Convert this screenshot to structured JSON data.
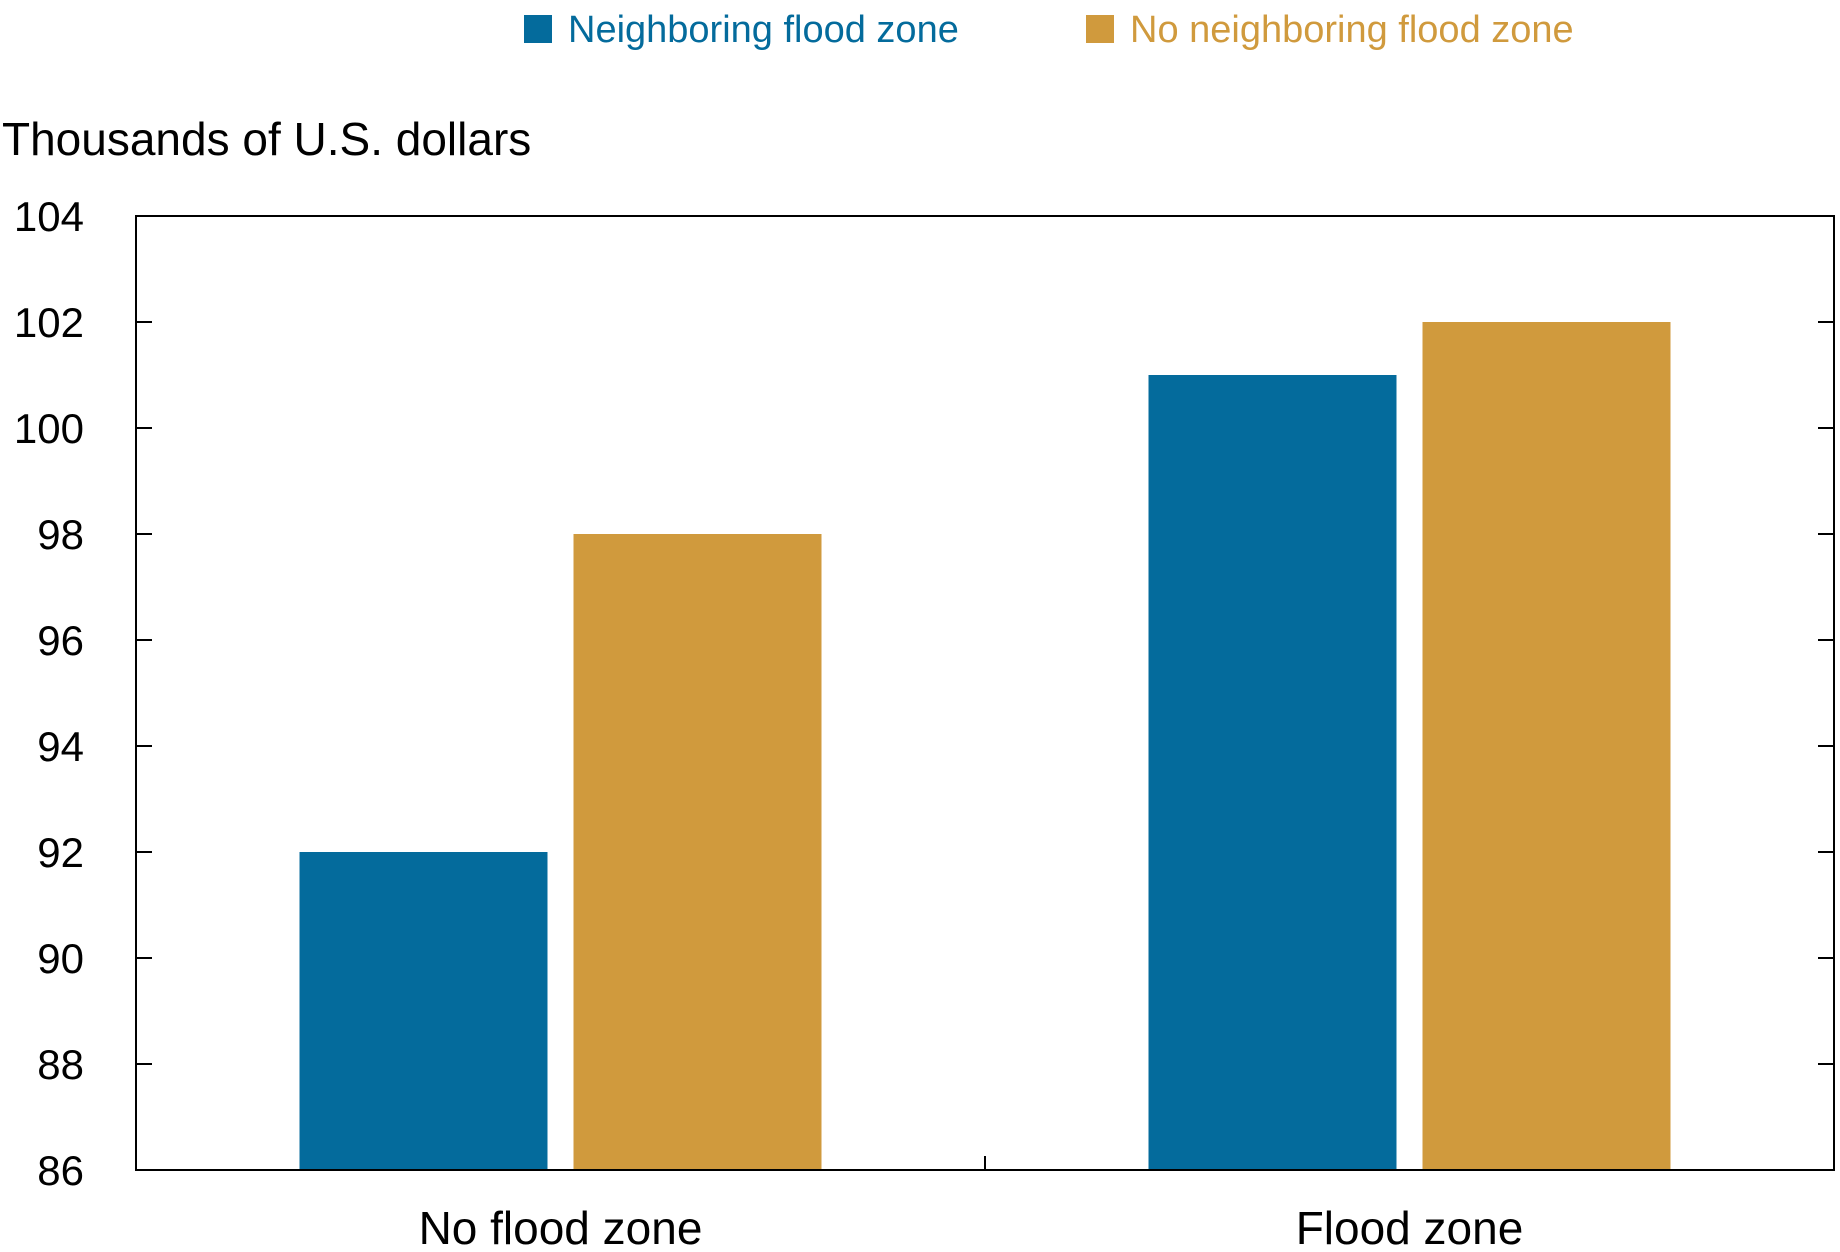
{
  "chart_data": {
    "type": "bar",
    "title": "",
    "xlabel": "",
    "ylabel": "Thousands of U.S. dollars",
    "categories": [
      "No flood zone",
      "Flood zone"
    ],
    "series": [
      {
        "name": "Neighboring flood zone",
        "color": "#046b9c",
        "values": [
          92,
          101
        ]
      },
      {
        "name": "No neighboring flood zone",
        "color": "#d09a3d",
        "values": [
          98,
          102
        ]
      }
    ],
    "ylim": [
      86,
      104
    ],
    "yticks": [
      86,
      88,
      90,
      92,
      94,
      96,
      98,
      100,
      102,
      104
    ],
    "grid": false,
    "legend_position": "top-center"
  }
}
